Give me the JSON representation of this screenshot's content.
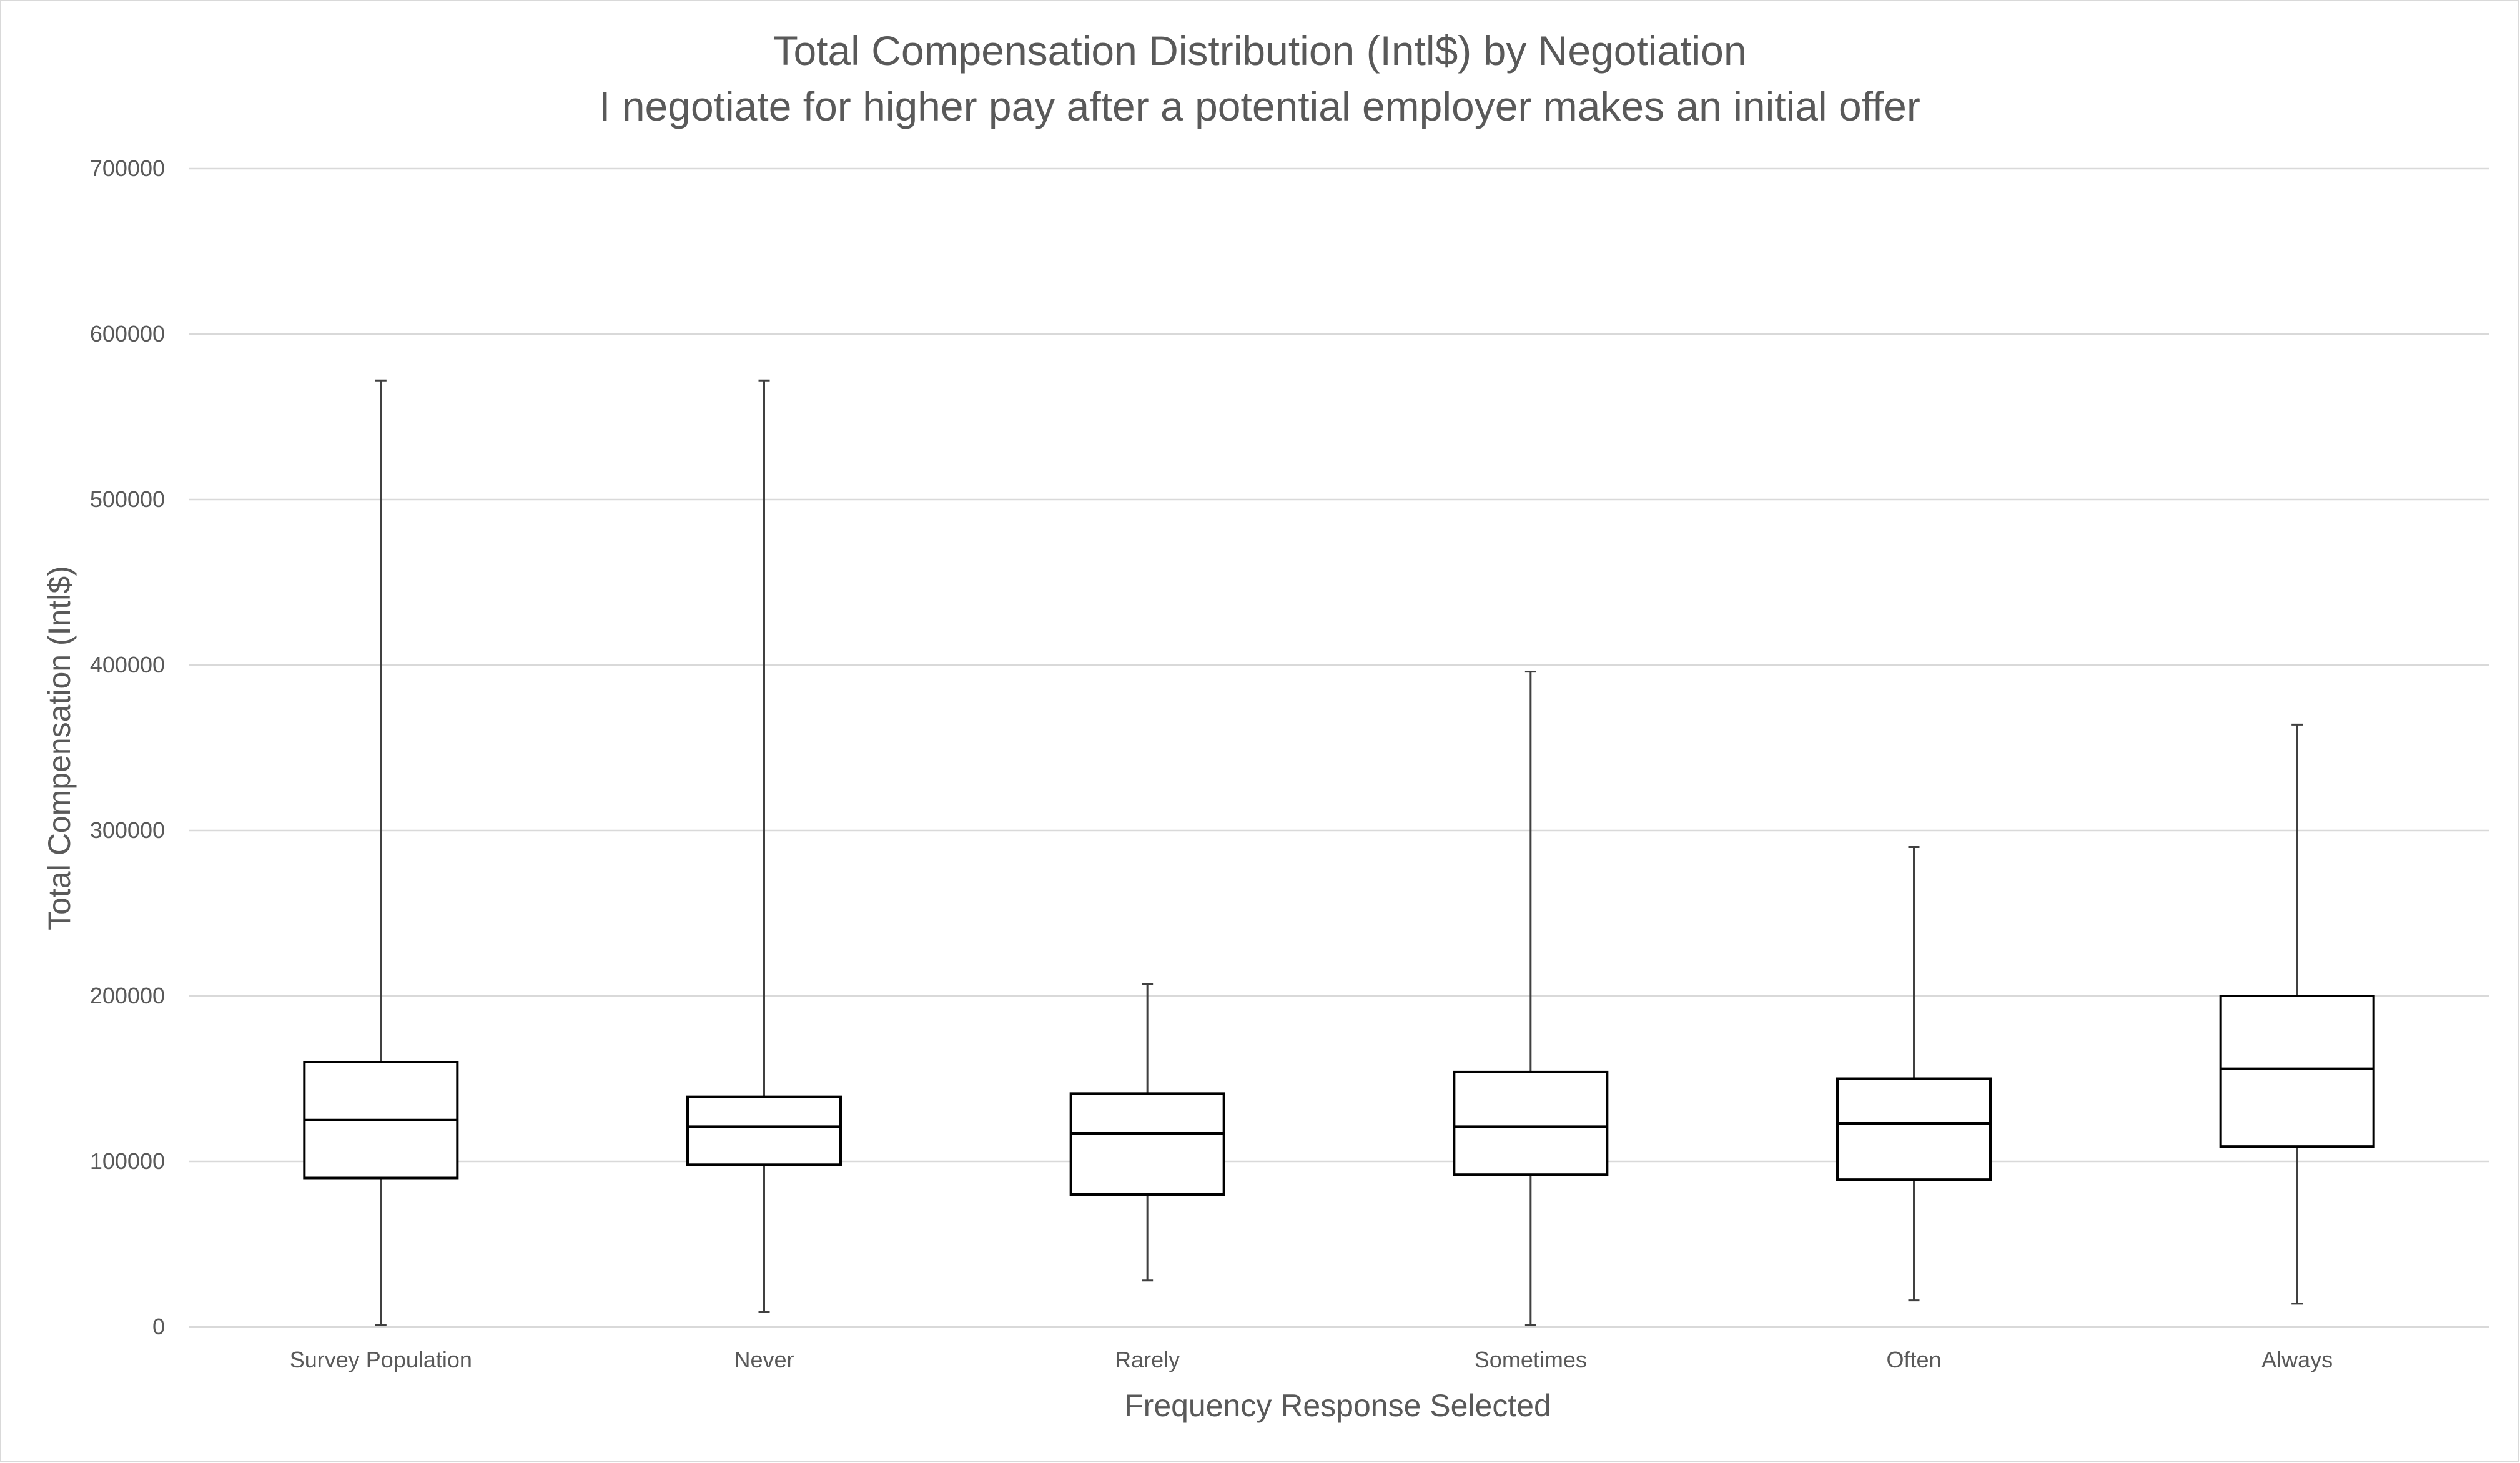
{
  "chart_data": {
    "type": "box",
    "title": "Total Compensation Distribution (Intl$) by Negotiation",
    "subtitle": "I negotiate for higher pay after a potential employer makes an initial offer",
    "xlabel": "Frequency Response Selected",
    "ylabel": "Total Compensation (Intl$)",
    "ylim": [
      0,
      700000
    ],
    "yticks": [
      "0",
      "100000",
      "200000",
      "300000",
      "400000",
      "500000",
      "600000",
      "700000"
    ],
    "grid": true,
    "categories": [
      "Survey Population",
      "Never",
      "Rarely",
      "Sometimes",
      "Often",
      "Always"
    ],
    "series": [
      {
        "category": "Survey Population",
        "min": 1000,
        "q1": 90000,
        "median": 125000,
        "q3": 160000,
        "max": 572000
      },
      {
        "category": "Never",
        "min": 9000,
        "q1": 98000,
        "median": 121000,
        "q3": 139000,
        "max": 572000
      },
      {
        "category": "Rarely",
        "min": 28000,
        "q1": 80000,
        "median": 117000,
        "q3": 141000,
        "max": 207000
      },
      {
        "category": "Sometimes",
        "min": 1000,
        "q1": 92000,
        "median": 121000,
        "q3": 154000,
        "max": 396000
      },
      {
        "category": "Often",
        "min": 16000,
        "q1": 89000,
        "median": 123000,
        "q3": 150000,
        "max": 290000
      },
      {
        "category": "Always",
        "min": 14000,
        "q1": 109000,
        "median": 156000,
        "q3": 200000,
        "max": 364000
      }
    ],
    "colors": {
      "box_stroke": "#000000",
      "whisker": "#404040",
      "grid": "#d9d9d9",
      "text": "#595959"
    }
  }
}
